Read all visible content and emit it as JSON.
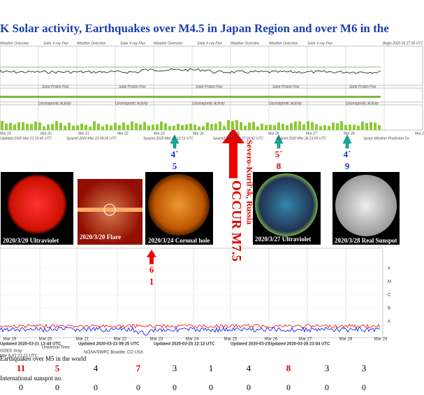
{
  "header": {
    "title": "K Solar activity, Earthquakes over M4.5 in Japan Region and over M6 in the"
  },
  "top_panel": {
    "row1_labels": [
      "Weather Overview",
      "Solar X-ray Flux",
      "Weather Overview",
      "Solar X-ray Flux",
      "Weather Overview",
      "Solar X-ray Flux",
      "Weather Overview",
      "Weather Overview",
      "Solar X-ray Flux",
      "Begin 2020 03 27 00 UTC"
    ],
    "row2_labels": [
      "Solar Proton Flux",
      "Solar Proton Flux",
      "Solar Proton Flux",
      "Solar Proton Flux",
      "Solar Proton Flux"
    ],
    "row3_labels": [
      "Geomagnetic Activity",
      "Geomagnetic Activity",
      "Geomagnetic Activity",
      "Geomagnetic Activity",
      "Geomagnetic Activity"
    ],
    "dates": [
      "Mar 19",
      "Mar 20",
      "Mar 21",
      "Mar 22",
      "Mar 23",
      "Mar 24",
      "Mar 25",
      "Mar 26",
      "Mar 27",
      "Mar 28",
      "Mar 29"
    ],
    "footer": [
      "Updated 2020 Mar 21 13:45 UTC",
      "Spaced 2020 Mar 23 09:26 UTC",
      "Spaced 2020 Mar 25 12:13 UTC",
      "Spaced 2020 Mar 27 03:42 UTC",
      "Spaced 2020 Mar 28 23:05 UTC",
      "Space Weather Prediction Ce"
    ]
  },
  "annotations": {
    "arrow1": [
      "4´",
      "5"
    ],
    "arrow2": [
      "5´",
      "8"
    ],
    "arrow3": [
      "4´",
      "9"
    ],
    "quake_place": "Severo-Kuril'sk, Russia",
    "quake_occur": "OCCUR M7.5",
    "arrow_hole": [
      "6",
      "1"
    ]
  },
  "images": [
    {
      "caption": "2020/3/20 Ultraviolet"
    },
    {
      "caption": "2020/3/20 Flare"
    },
    {
      "caption": "2020/3/24 Coronal hole"
    },
    {
      "caption": "2020/3/27 Ultraviolet"
    },
    {
      "caption": "2020/3/28 Real Sunspot"
    }
  ],
  "bottom_chart": {
    "class_labels": [
      "X",
      "M",
      "C",
      "B",
      "A"
    ],
    "dates": [
      "Mar 19",
      "Mar 20",
      "Mar 21",
      "Mar 22",
      "Mar 23",
      "Mar 24",
      "Mar 25",
      "Mar 26",
      "Mar 27",
      "Mar 28",
      "Mar 29"
    ],
    "updated": [
      "Updated 2020-03-21 13:44 UTC",
      "Updated 2020-03-23 09:25 UTC",
      "Updated 2020-03-25 12:12 UTC",
      "Updated 2020-03-27",
      "Updated 2020-03-28 23:04 UTC"
    ],
    "axis_label": "Universal Time",
    "footer": [
      "GOES Xray",
      "Mar  6 02:21:11 UTC",
      "NOAA/SWPC Boulder, CO USA"
    ]
  },
  "table": {
    "earthquake_label": "Earthquakes over M5 in the world",
    "earthquakes": [
      11,
      5,
      4,
      7,
      3,
      1,
      4,
      8,
      3,
      3
    ],
    "earthquake_colors": [
      "#d00",
      "#d00",
      "#000",
      "#d00",
      "#000",
      "#000",
      "#000",
      "#d00",
      "#000",
      "#000"
    ],
    "sunspot_label": "International sunspot no.",
    "sunspots": [
      0,
      0,
      0,
      0,
      0,
      0,
      0,
      0,
      0,
      0
    ]
  }
}
